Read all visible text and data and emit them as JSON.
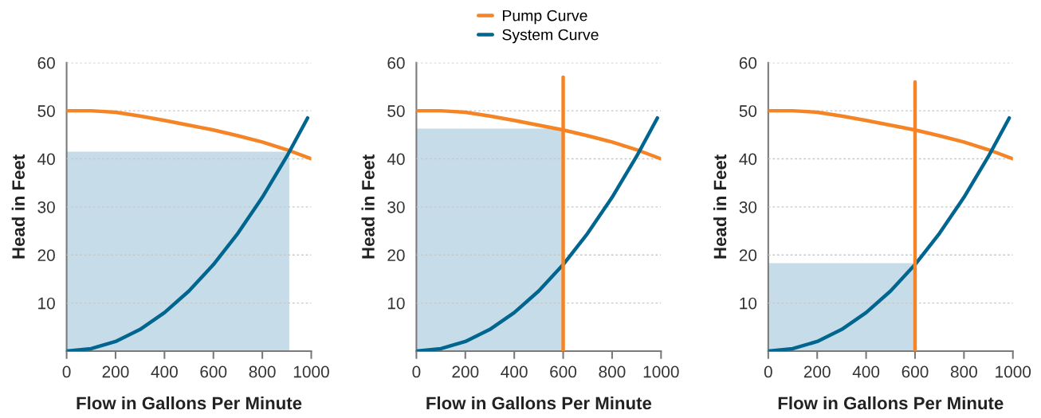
{
  "chart_data": [
    {
      "type": "line",
      "xlabel": "Flow in Gallons Per Minute",
      "ylabel": "Head in Feet",
      "xlim": [
        0,
        1000
      ],
      "ylim": [
        0,
        60
      ],
      "xticks": [
        0,
        200,
        400,
        600,
        800,
        1000
      ],
      "yticks": [
        10,
        20,
        30,
        40,
        50,
        60
      ],
      "grid": "y",
      "marker": "none",
      "line_style": "solid",
      "series": [
        {
          "type": "area",
          "color": "#c6dde9",
          "x": [
            0,
            910
          ],
          "values": [
            41.5,
            41.5
          ]
        },
        {
          "color": "#f58426",
          "x": [
            0,
            100,
            200,
            300,
            400,
            500,
            600,
            700,
            800,
            900,
            1000
          ],
          "values": [
            50,
            50,
            49.7,
            48.9,
            48,
            47,
            46,
            44.8,
            43.5,
            41.9,
            40
          ]
        },
        {
          "color": "#00668f",
          "x": [
            0,
            100,
            200,
            300,
            400,
            500,
            600,
            700,
            800,
            900,
            985
          ],
          "values": [
            0,
            0.5,
            2,
            4.5,
            8,
            12.5,
            18,
            24.5,
            32,
            40.5,
            48.5
          ]
        }
      ]
    },
    {
      "type": "line",
      "xlabel": "Flow in Gallons Per Minute",
      "ylabel": "Head in Feet",
      "xlim": [
        0,
        1000
      ],
      "ylim": [
        0,
        60
      ],
      "xticks": [
        0,
        200,
        400,
        600,
        800,
        1000
      ],
      "yticks": [
        10,
        20,
        30,
        40,
        50,
        60
      ],
      "grid": "y",
      "marker": "none",
      "line_style": "solid",
      "legend": "top",
      "series": [
        {
          "type": "area",
          "color": "#c6dde9",
          "x": [
            0,
            600
          ],
          "values": [
            46.3,
            46.3
          ]
        },
        {
          "name": "Pump Curve",
          "color": "#f58426",
          "x": [
            0,
            100,
            200,
            300,
            400,
            500,
            600,
            700,
            800,
            900,
            1000
          ],
          "values": [
            50,
            50,
            49.7,
            48.9,
            48,
            47,
            46,
            44.8,
            43.5,
            41.9,
            40
          ]
        },
        {
          "name": "System Curve",
          "color": "#00668f",
          "x": [
            0,
            100,
            200,
            300,
            400,
            500,
            600,
            700,
            800,
            900,
            985
          ],
          "values": [
            0,
            0.5,
            2,
            4.5,
            8,
            12.5,
            18,
            24.5,
            32,
            40.5,
            48.5
          ]
        },
        {
          "color": "#f58426",
          "x": [
            600,
            600
          ],
          "values": [
            0,
            57
          ]
        }
      ]
    },
    {
      "type": "line",
      "xlabel": "Flow in Gallons Per Minute",
      "ylabel": "Head in Feet",
      "xlim": [
        0,
        1000
      ],
      "ylim": [
        0,
        60
      ],
      "xticks": [
        0,
        200,
        400,
        600,
        800,
        1000
      ],
      "yticks": [
        10,
        20,
        30,
        40,
        50,
        60
      ],
      "grid": "y",
      "marker": "none",
      "line_style": "solid",
      "series": [
        {
          "type": "area",
          "color": "#c6dde9",
          "x": [
            0,
            600
          ],
          "values": [
            18.3,
            18.3
          ]
        },
        {
          "color": "#f58426",
          "x": [
            0,
            100,
            200,
            300,
            400,
            500,
            600,
            700,
            800,
            900,
            1000
          ],
          "values": [
            50,
            50,
            49.7,
            48.9,
            48,
            47,
            46,
            44.8,
            43.5,
            41.9,
            40
          ]
        },
        {
          "color": "#00668f",
          "x": [
            0,
            100,
            200,
            300,
            400,
            500,
            600,
            700,
            800,
            900,
            985
          ],
          "values": [
            0,
            0.5,
            2,
            4.5,
            8,
            12.5,
            18,
            24.5,
            32,
            40.5,
            48.5
          ]
        },
        {
          "color": "#f58426",
          "x": [
            600,
            600
          ],
          "values": [
            0,
            56
          ]
        }
      ]
    }
  ]
}
